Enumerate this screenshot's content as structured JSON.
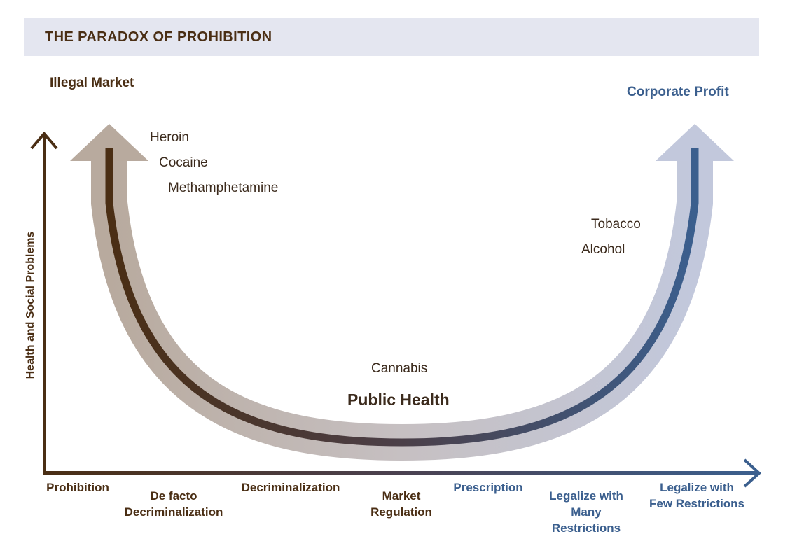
{
  "title": "THE PARADOX OF PROHIBITION",
  "corner_labels": {
    "left": "Illegal Market",
    "right": "Corporate Profit"
  },
  "y_axis_label": "Health and Social Problems",
  "drugs": {
    "left": [
      "Heroin",
      "Cocaine",
      "Methamphetamine"
    ],
    "right": [
      "Tobacco",
      "Alcohol"
    ],
    "center": "Cannabis"
  },
  "center_label": "Public Health",
  "x_axis_stages": [
    {
      "lines": [
        "Prohibition"
      ]
    },
    {
      "lines": [
        "De facto",
        "Decriminalization"
      ]
    },
    {
      "lines": [
        "Decriminalization"
      ]
    },
    {
      "lines": [
        "Market",
        "Regulation"
      ]
    },
    {
      "lines": [
        "Prescription"
      ]
    },
    {
      "lines": [
        "Legalize with",
        "Many",
        "Restrictions"
      ]
    },
    {
      "lines": [
        "Legalize with",
        "Few Restrictions"
      ]
    }
  ],
  "colors": {
    "brown": "#4a2e14",
    "blue": "#3b5f8e",
    "wide_arrow_left": "#b8aa9e",
    "wide_arrow_right": "#c2c8dc",
    "title_band": "#e4e6f0"
  }
}
